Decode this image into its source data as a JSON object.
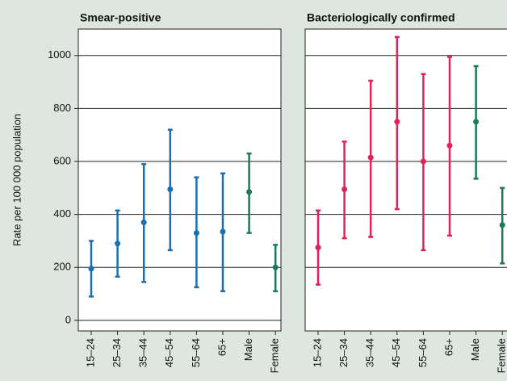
{
  "chart_data": [
    {
      "type": "errorbar",
      "title": "Smear-positive",
      "ylabel": "Rate per 100 000 population",
      "categories": [
        "15–24",
        "25–34",
        "35–44",
        "45–54",
        "55–64",
        "65+",
        "Male",
        "Female"
      ],
      "colors": [
        "#1a6faf",
        "#1a6faf",
        "#1a6faf",
        "#1a6faf",
        "#1a6faf",
        "#1a6faf",
        "#1b7a57",
        "#1b7a57"
      ],
      "values": [
        195,
        290,
        370,
        495,
        330,
        335,
        485,
        200
      ],
      "lower": [
        90,
        165,
        145,
        265,
        125,
        110,
        330,
        110
      ],
      "upper": [
        300,
        415,
        590,
        720,
        540,
        555,
        630,
        285
      ],
      "ylim": [
        -40,
        1100
      ],
      "yticks": [
        0,
        200,
        400,
        600,
        800,
        1000
      ],
      "grid": true
    },
    {
      "type": "errorbar",
      "title": "Bacteriologically confirmed",
      "categories": [
        "15–24",
        "25–34",
        "35–44",
        "45–54",
        "55–64",
        "65+",
        "Male",
        "Female"
      ],
      "colors": [
        "#dc2458",
        "#dc2458",
        "#dc2458",
        "#dc2458",
        "#dc2458",
        "#dc2458",
        "#1b7a57",
        "#1b7a57"
      ],
      "values": [
        275,
        495,
        615,
        750,
        600,
        660,
        750,
        360
      ],
      "lower": [
        135,
        310,
        315,
        420,
        265,
        320,
        535,
        215
      ],
      "upper": [
        415,
        675,
        905,
        1070,
        930,
        995,
        960,
        500
      ],
      "ylim": [
        -40,
        1100
      ],
      "yticks": [
        200,
        400,
        600,
        800,
        1000
      ],
      "grid": true
    }
  ]
}
